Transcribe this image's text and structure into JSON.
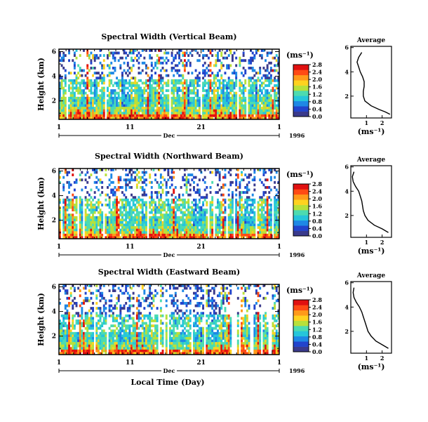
{
  "chart_data": [
    {
      "type": "heatmap",
      "title": "Spectral Width (Vertical Beam)",
      "ylabel": "Height (km)",
      "yticks": [
        "6",
        "4",
        "2"
      ],
      "xticks": [
        "1",
        "11",
        "21",
        "1"
      ],
      "month_label": "Dec",
      "year_label": "1996",
      "colorbar_unit": "(ms⁻¹)",
      "colorbar_ticks": [
        "2.8",
        "2.4",
        "2.0",
        "1.6",
        "1.2",
        "0.8",
        "0.4",
        "0.0"
      ],
      "profile": {
        "title": "Average",
        "xlabel": "(ms⁻¹)",
        "xticks": [
          "1",
          "2"
        ],
        "yticks": [
          "6",
          "4",
          "2"
        ],
        "points": [
          [
            0.7,
            5.6
          ],
          [
            0.5,
            5.2
          ],
          [
            0.4,
            4.8
          ],
          [
            0.5,
            4.4
          ],
          [
            0.6,
            4.0
          ],
          [
            0.75,
            3.6
          ],
          [
            0.85,
            3.2
          ],
          [
            0.85,
            2.8
          ],
          [
            0.8,
            2.4
          ],
          [
            0.8,
            2.0
          ],
          [
            0.9,
            1.6
          ],
          [
            1.3,
            1.2
          ],
          [
            1.8,
            0.9
          ],
          [
            2.2,
            0.7
          ],
          [
            2.5,
            0.5
          ]
        ]
      }
    },
    {
      "type": "heatmap",
      "title": "Spectral Width (Northward Beam)",
      "ylabel": "Height (km)",
      "yticks": [
        "6",
        "4",
        "2"
      ],
      "xticks": [
        "1",
        "11",
        "21",
        "1"
      ],
      "month_label": "Dec",
      "year_label": "1996",
      "colorbar_unit": "(ms⁻¹)",
      "colorbar_ticks": [
        "2.8",
        "2.4",
        "2.0",
        "1.6",
        "1.2",
        "0.8",
        "0.4",
        "0.0"
      ],
      "profile": {
        "title": "Average",
        "xlabel": "(ms⁻¹)",
        "xticks": [
          "1",
          "2"
        ],
        "yticks": [
          "6",
          "4",
          "2"
        ],
        "points": [
          [
            0.2,
            5.6
          ],
          [
            0.1,
            5.2
          ],
          [
            0.15,
            4.8
          ],
          [
            0.3,
            4.4
          ],
          [
            0.5,
            4.0
          ],
          [
            0.6,
            3.6
          ],
          [
            0.7,
            3.2
          ],
          [
            0.75,
            2.8
          ],
          [
            0.8,
            2.4
          ],
          [
            0.9,
            2.0
          ],
          [
            1.1,
            1.6
          ],
          [
            1.5,
            1.2
          ],
          [
            2.0,
            0.9
          ],
          [
            2.4,
            0.6
          ]
        ]
      }
    },
    {
      "type": "heatmap",
      "title": "Spectral Width (Eastward Beam)",
      "ylabel": "Height (km)",
      "yticks": [
        "6",
        "4",
        "2"
      ],
      "xticks": [
        "1",
        "11",
        "21",
        "1"
      ],
      "month_label": "Dec",
      "year_label": "1996",
      "xlabel": "Local Time (Day)",
      "colorbar_unit": "(ms⁻¹)",
      "colorbar_ticks": [
        "2.8",
        "2.4",
        "2.0",
        "1.6",
        "1.2",
        "0.8",
        "0.4",
        "0.0"
      ],
      "profile": {
        "title": "Average",
        "xlabel": "(ms⁻¹)",
        "xticks": [
          "1",
          "2"
        ],
        "yticks": [
          "6",
          "4",
          "2"
        ],
        "points": [
          [
            0.2,
            5.6
          ],
          [
            0.15,
            5.2
          ],
          [
            0.2,
            4.8
          ],
          [
            0.35,
            4.4
          ],
          [
            0.55,
            4.0
          ],
          [
            0.7,
            3.6
          ],
          [
            0.8,
            3.2
          ],
          [
            0.9,
            2.8
          ],
          [
            1.0,
            2.4
          ],
          [
            1.1,
            2.0
          ],
          [
            1.3,
            1.6
          ],
          [
            1.6,
            1.2
          ],
          [
            2.0,
            0.9
          ],
          [
            2.4,
            0.6
          ]
        ]
      }
    }
  ],
  "colors": {
    "scale": [
      "#3a3a8c",
      "#2244cc",
      "#1e88e5",
      "#26c6da",
      "#4ddbb0",
      "#b8e03a",
      "#ffd21f",
      "#ff9a1a",
      "#ff4a14",
      "#e01010"
    ]
  }
}
